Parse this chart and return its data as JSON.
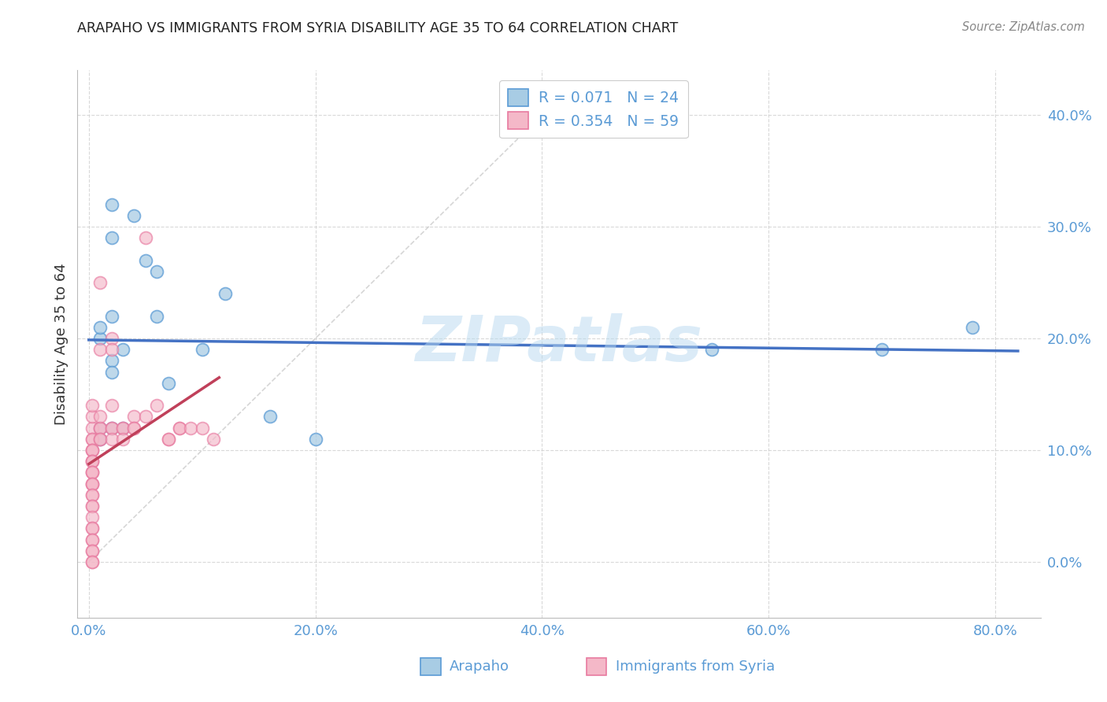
{
  "title": "ARAPAHO VS IMMIGRANTS FROM SYRIA DISABILITY AGE 35 TO 64 CORRELATION CHART",
  "source": "Source: ZipAtlas.com",
  "xlabel_tick_vals": [
    0.0,
    0.2,
    0.4,
    0.6,
    0.8
  ],
  "ylabel_tick_vals": [
    0.0,
    0.1,
    0.2,
    0.3,
    0.4
  ],
  "ylabel": "Disability Age 35 to 64",
  "legend_label_1": "Arapaho",
  "legend_label_2": "Immigrants from Syria",
  "R1": "0.071",
  "N1": "24",
  "R2": "0.354",
  "N2": "59",
  "color_blue": "#a8cce4",
  "color_pink": "#f4b8c8",
  "color_blue_edge": "#5b9bd5",
  "color_pink_edge": "#e87aa0",
  "color_blue_line": "#4472c4",
  "color_pink_line": "#c0405a",
  "color_axis_text": "#5b9bd5",
  "color_ylabel": "#444444",
  "watermark": "ZIPatlas",
  "watermark_color": "#b8d9f0",
  "arapaho_x": [
    0.02,
    0.04,
    0.05,
    0.06,
    0.02,
    0.03,
    0.01,
    0.01,
    0.02,
    0.02,
    0.07,
    0.06,
    0.1,
    0.12,
    0.2,
    0.16,
    0.01,
    0.01,
    0.02,
    0.03,
    0.55,
    0.7,
    0.78,
    0.02
  ],
  "arapaho_y": [
    0.29,
    0.31,
    0.27,
    0.26,
    0.22,
    0.19,
    0.2,
    0.21,
    0.18,
    0.17,
    0.16,
    0.22,
    0.19,
    0.24,
    0.11,
    0.13,
    0.12,
    0.11,
    0.12,
    0.12,
    0.19,
    0.19,
    0.21,
    0.32
  ],
  "syria_x": [
    0.003,
    0.003,
    0.003,
    0.003,
    0.003,
    0.003,
    0.003,
    0.003,
    0.003,
    0.003,
    0.003,
    0.003,
    0.003,
    0.003,
    0.003,
    0.003,
    0.003,
    0.003,
    0.003,
    0.003,
    0.003,
    0.003,
    0.003,
    0.003,
    0.003,
    0.003,
    0.003,
    0.003,
    0.003,
    0.003,
    0.01,
    0.01,
    0.01,
    0.01,
    0.01,
    0.01,
    0.01,
    0.02,
    0.02,
    0.02,
    0.02,
    0.02,
    0.02,
    0.03,
    0.03,
    0.03,
    0.04,
    0.04,
    0.04,
    0.05,
    0.06,
    0.07,
    0.07,
    0.08,
    0.08,
    0.09,
    0.1,
    0.11,
    0.05
  ],
  "syria_y": [
    0.12,
    0.11,
    0.11,
    0.1,
    0.1,
    0.1,
    0.09,
    0.09,
    0.09,
    0.08,
    0.08,
    0.08,
    0.07,
    0.07,
    0.07,
    0.06,
    0.06,
    0.05,
    0.05,
    0.04,
    0.03,
    0.03,
    0.02,
    0.02,
    0.01,
    0.01,
    0.0,
    0.0,
    0.13,
    0.14,
    0.12,
    0.12,
    0.11,
    0.11,
    0.13,
    0.25,
    0.19,
    0.2,
    0.19,
    0.14,
    0.12,
    0.12,
    0.11,
    0.12,
    0.12,
    0.11,
    0.13,
    0.12,
    0.12,
    0.13,
    0.14,
    0.11,
    0.11,
    0.12,
    0.12,
    0.12,
    0.12,
    0.11,
    0.29
  ],
  "xlim": [
    -0.01,
    0.84
  ],
  "ylim": [
    -0.05,
    0.44
  ]
}
